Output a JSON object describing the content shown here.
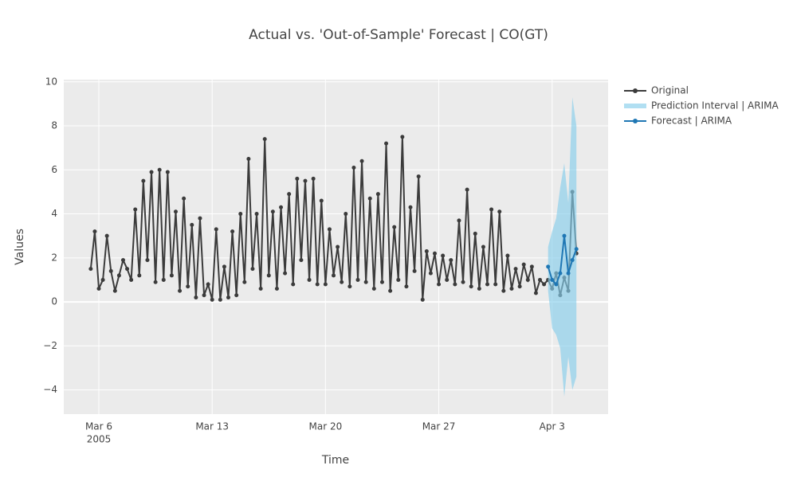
{
  "chart_data": {
    "type": "line",
    "title": "Actual vs. 'Out-of-Sample' Forecast | CO(GT)",
    "x_label": "Time",
    "y_label": "Values",
    "xtick_year": "2005",
    "xlim": [
      "2005-03-03 20:00",
      "2005-04-06 11:00"
    ],
    "xticks": [
      {
        "value": "2005-03-06 00:00",
        "label": "Mar 6"
      },
      {
        "value": "2005-03-13 00:00",
        "label": "Mar 13"
      },
      {
        "value": "2005-03-20 00:00",
        "label": "Mar 20"
      },
      {
        "value": "2005-03-27 00:00",
        "label": "Mar 27"
      },
      {
        "value": "2005-04-03 00:00",
        "label": "Apr 3"
      }
    ],
    "ylim": [
      -5.1,
      10.1
    ],
    "yticks": [
      {
        "value": -4,
        "label": "−4"
      },
      {
        "value": -2,
        "label": "−2"
      },
      0,
      2,
      4,
      6,
      8,
      10
    ],
    "grid": true,
    "legend": "right",
    "series": [
      {
        "name": "Original",
        "color": "#3b3b3b",
        "x": [
          "2005-03-05 12:00",
          "2005-03-05 18:00",
          "2005-03-06 00:00",
          "2005-03-06 06:00",
          "2005-03-06 12:00",
          "2005-03-06 18:00",
          "2005-03-07 00:00",
          "2005-03-07 06:00",
          "2005-03-07 12:00",
          "2005-03-07 18:00",
          "2005-03-08 00:00",
          "2005-03-08 06:00",
          "2005-03-08 12:00",
          "2005-03-08 18:00",
          "2005-03-09 00:00",
          "2005-03-09 06:00",
          "2005-03-09 12:00",
          "2005-03-09 18:00",
          "2005-03-10 00:00",
          "2005-03-10 06:00",
          "2005-03-10 12:00",
          "2005-03-10 18:00",
          "2005-03-11 00:00",
          "2005-03-11 06:00",
          "2005-03-11 12:00",
          "2005-03-11 18:00",
          "2005-03-12 00:00",
          "2005-03-12 06:00",
          "2005-03-12 12:00",
          "2005-03-12 18:00",
          "2005-03-13 00:00",
          "2005-03-13 06:00",
          "2005-03-13 12:00",
          "2005-03-13 18:00",
          "2005-03-14 00:00",
          "2005-03-14 06:00",
          "2005-03-14 12:00",
          "2005-03-14 18:00",
          "2005-03-15 00:00",
          "2005-03-15 06:00",
          "2005-03-15 12:00",
          "2005-03-15 18:00",
          "2005-03-16 00:00",
          "2005-03-16 06:00",
          "2005-03-16 12:00",
          "2005-03-16 18:00",
          "2005-03-17 00:00",
          "2005-03-17 06:00",
          "2005-03-17 12:00",
          "2005-03-17 18:00",
          "2005-03-18 00:00",
          "2005-03-18 06:00",
          "2005-03-18 12:00",
          "2005-03-18 18:00",
          "2005-03-19 00:00",
          "2005-03-19 06:00",
          "2005-03-19 12:00",
          "2005-03-19 18:00",
          "2005-03-20 00:00",
          "2005-03-20 06:00",
          "2005-03-20 12:00",
          "2005-03-20 18:00",
          "2005-03-21 00:00",
          "2005-03-21 06:00",
          "2005-03-21 12:00",
          "2005-03-21 18:00",
          "2005-03-22 00:00",
          "2005-03-22 06:00",
          "2005-03-22 12:00",
          "2005-03-22 18:00",
          "2005-03-23 00:00",
          "2005-03-23 06:00",
          "2005-03-23 12:00",
          "2005-03-23 18:00",
          "2005-03-24 00:00",
          "2005-03-24 06:00",
          "2005-03-24 12:00",
          "2005-03-24 18:00",
          "2005-03-25 00:00",
          "2005-03-25 06:00",
          "2005-03-25 12:00",
          "2005-03-25 18:00",
          "2005-03-26 00:00",
          "2005-03-26 06:00",
          "2005-03-26 12:00",
          "2005-03-26 18:00",
          "2005-03-27 00:00",
          "2005-03-27 06:00",
          "2005-03-27 12:00",
          "2005-03-27 18:00",
          "2005-03-28 00:00",
          "2005-03-28 06:00",
          "2005-03-28 12:00",
          "2005-03-28 18:00",
          "2005-03-29 00:00",
          "2005-03-29 06:00",
          "2005-03-29 12:00",
          "2005-03-29 18:00",
          "2005-03-30 00:00",
          "2005-03-30 06:00",
          "2005-03-30 12:00",
          "2005-03-30 18:00",
          "2005-03-31 00:00",
          "2005-03-31 06:00",
          "2005-03-31 12:00",
          "2005-03-31 18:00",
          "2005-04-01 00:00",
          "2005-04-01 06:00",
          "2005-04-01 12:00",
          "2005-04-01 18:00",
          "2005-04-02 00:00",
          "2005-04-02 06:00",
          "2005-04-02 12:00",
          "2005-04-02 18:00",
          "2005-04-03 00:00",
          "2005-04-03 06:00",
          "2005-04-03 12:00",
          "2005-04-03 18:00",
          "2005-04-04 00:00",
          "2005-04-04 06:00",
          "2005-04-04 12:00"
        ],
        "values": [
          1.5,
          3.2,
          0.6,
          1.0,
          3.0,
          1.4,
          0.5,
          1.2,
          1.9,
          1.5,
          1.0,
          4.2,
          1.2,
          5.5,
          1.9,
          5.9,
          0.9,
          6.0,
          1.0,
          5.9,
          1.2,
          4.1,
          0.5,
          4.7,
          0.7,
          3.5,
          0.2,
          3.8,
          0.3,
          0.8,
          0.1,
          3.3,
          0.1,
          1.6,
          0.2,
          3.2,
          0.3,
          4.0,
          0.9,
          6.5,
          1.5,
          4.0,
          0.6,
          7.4,
          1.2,
          4.1,
          0.6,
          4.3,
          1.3,
          4.9,
          0.8,
          5.6,
          1.9,
          5.5,
          1.0,
          5.6,
          0.8,
          4.6,
          0.8,
          3.3,
          1.2,
          2.5,
          0.9,
          4.0,
          0.7,
          6.1,
          1.0,
          6.4,
          0.9,
          4.7,
          0.6,
          4.9,
          0.9,
          7.2,
          0.5,
          3.4,
          1.0,
          7.5,
          0.7,
          4.3,
          1.4,
          5.7,
          0.1,
          2.3,
          1.3,
          2.2,
          0.8,
          2.1,
          1.0,
          1.9,
          0.8,
          3.7,
          0.9,
          5.1,
          0.7,
          3.1,
          0.6,
          2.5,
          0.8,
          4.2,
          0.8,
          4.1,
          0.5,
          2.1,
          0.6,
          1.5,
          0.7,
          1.7,
          1.0,
          1.6,
          0.4,
          1.0,
          0.8,
          1.0,
          0.6,
          1.3,
          0.3,
          1.1,
          0.5,
          5.0,
          2.2
        ]
      },
      {
        "name": "Prediction Interval | ARIMA",
        "color": "rgba(135,206,235,0.65)",
        "band": true,
        "x": [
          "2005-04-02 18:00",
          "2005-04-03 00:00",
          "2005-04-03 06:00",
          "2005-04-03 12:00",
          "2005-04-03 18:00",
          "2005-04-04 00:00",
          "2005-04-04 06:00",
          "2005-04-04 12:00"
        ],
        "upper": [
          2.5,
          3.2,
          3.8,
          5.2,
          6.3,
          4.5,
          9.3,
          8.0
        ],
        "lower": [
          0.5,
          -1.2,
          -1.5,
          -2.1,
          -4.3,
          -2.5,
          -4.0,
          -3.4
        ]
      },
      {
        "name": "Forecast | ARIMA",
        "color": "#1f77b4",
        "x": [
          "2005-04-02 18:00",
          "2005-04-03 00:00",
          "2005-04-03 06:00",
          "2005-04-03 12:00",
          "2005-04-03 18:00",
          "2005-04-04 00:00",
          "2005-04-04 06:00",
          "2005-04-04 12:00"
        ],
        "values": [
          1.6,
          1.0,
          0.8,
          1.3,
          3.0,
          1.3,
          1.9,
          2.4
        ]
      }
    ]
  }
}
